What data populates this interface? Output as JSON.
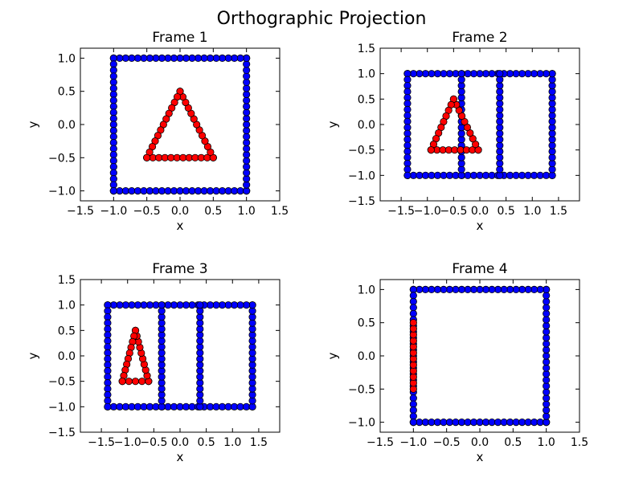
{
  "figure_title": "Orthographic Projection",
  "colors": {
    "square": "#0000ff",
    "triangle": "#ff0000"
  },
  "chart_data": [
    {
      "type": "scatter",
      "title": "Frame 1",
      "xlabel": "x",
      "ylabel": "y",
      "xlim": [
        -1.5,
        1.5
      ],
      "ylim": [
        -1.15,
        1.15
      ],
      "xticks": [
        -1.5,
        -1.0,
        -0.5,
        0.0,
        0.5,
        1.0,
        1.5
      ],
      "yticks": [
        -1.0,
        -0.5,
        0.0,
        0.5,
        1.0
      ],
      "tick_labels_x": [
        "−1.5",
        "−1.0",
        "−0.5",
        "0.0",
        "0.5",
        "1.0",
        "1.5"
      ],
      "tick_labels_y": [
        "−1.0",
        "−0.5",
        "0.0",
        "0.5",
        "1.0"
      ],
      "series": [
        {
          "color": "#0000ff",
          "marker": "circle",
          "segments": [
            [
              [
                -1.0,
                -1.0
              ],
              [
                1.0,
                -1.0
              ]
            ],
            [
              [
                1.0,
                -1.0
              ],
              [
                1.0,
                1.0
              ]
            ],
            [
              [
                1.0,
                1.0
              ],
              [
                -1.0,
                1.0
              ]
            ],
            [
              [
                -1.0,
                1.0
              ],
              [
                -1.0,
                -1.0
              ]
            ]
          ]
        },
        {
          "color": "#ff0000",
          "marker": "circle",
          "segments": [
            [
              [
                -0.5,
                -0.5
              ],
              [
                0.5,
                -0.5
              ]
            ],
            [
              [
                0.5,
                -0.5
              ],
              [
                0.0,
                0.5
              ]
            ],
            [
              [
                0.0,
                0.5
              ],
              [
                -0.5,
                -0.5
              ]
            ]
          ]
        }
      ]
    },
    {
      "type": "scatter",
      "title": "Frame 2",
      "xlabel": "x",
      "ylabel": "y",
      "xlim": [
        -1.9,
        1.9
      ],
      "ylim": [
        -1.5,
        1.5
      ],
      "xticks": [
        -1.5,
        -1.0,
        -0.5,
        0.0,
        0.5,
        1.0,
        1.5
      ],
      "yticks": [
        -1.5,
        -1.0,
        -0.5,
        0.0,
        0.5,
        1.0,
        1.5
      ],
      "tick_labels_x": [
        "−1.5",
        "−1.0",
        "−0.5",
        "0.0",
        "0.5",
        "1.0",
        "1.5"
      ],
      "tick_labels_y": [
        "−1.5",
        "−1.0",
        "−0.5",
        "0.0",
        "0.5",
        "1.0",
        "1.5"
      ],
      "series": [
        {
          "color": "#0000ff",
          "marker": "circle",
          "segments": [
            [
              [
                -1.38,
                -1.0
              ],
              [
                1.38,
                -1.0
              ]
            ],
            [
              [
                1.38,
                -1.0
              ],
              [
                1.38,
                1.0
              ]
            ],
            [
              [
                1.38,
                1.0
              ],
              [
                -1.38,
                1.0
              ]
            ],
            [
              [
                -1.38,
                1.0
              ],
              [
                -1.38,
                -1.0
              ]
            ],
            [
              [
                -0.35,
                -1.0
              ],
              [
                -0.35,
                1.0
              ]
            ],
            [
              [
                0.38,
                -1.0
              ],
              [
                0.38,
                1.0
              ]
            ]
          ]
        },
        {
          "color": "#ff0000",
          "marker": "circle",
          "segments": [
            [
              [
                -0.93,
                -0.5
              ],
              [
                -0.03,
                -0.5
              ]
            ],
            [
              [
                -0.03,
                -0.5
              ],
              [
                -0.5,
                0.5
              ]
            ],
            [
              [
                -0.5,
                0.5
              ],
              [
                -0.93,
                -0.5
              ]
            ]
          ]
        }
      ]
    },
    {
      "type": "scatter",
      "title": "Frame 3",
      "xlabel": "x",
      "ylabel": "y",
      "xlim": [
        -1.9,
        1.9
      ],
      "ylim": [
        -1.5,
        1.5
      ],
      "xticks": [
        -1.5,
        -1.0,
        -0.5,
        0.0,
        0.5,
        1.0,
        1.5
      ],
      "yticks": [
        -1.5,
        -1.0,
        -0.5,
        0.0,
        0.5,
        1.0,
        1.5
      ],
      "tick_labels_x": [
        "−1.5",
        "−1.0",
        "−0.5",
        "0.0",
        "0.5",
        "1.0",
        "1.5"
      ],
      "tick_labels_y": [
        "−1.5",
        "−1.0",
        "−0.5",
        "0.0",
        "0.5",
        "1.0",
        "1.5"
      ],
      "series": [
        {
          "color": "#0000ff",
          "marker": "circle",
          "segments": [
            [
              [
                -1.38,
                -1.0
              ],
              [
                1.38,
                -1.0
              ]
            ],
            [
              [
                1.38,
                -1.0
              ],
              [
                1.38,
                1.0
              ]
            ],
            [
              [
                1.38,
                1.0
              ],
              [
                -1.38,
                1.0
              ]
            ],
            [
              [
                -1.38,
                1.0
              ],
              [
                -1.38,
                -1.0
              ]
            ],
            [
              [
                -0.35,
                -1.0
              ],
              [
                -0.35,
                1.0
              ]
            ],
            [
              [
                0.38,
                -1.0
              ],
              [
                0.38,
                1.0
              ]
            ]
          ]
        },
        {
          "color": "#ff0000",
          "marker": "circle",
          "segments": [
            [
              [
                -1.1,
                -0.5
              ],
              [
                -0.6,
                -0.5
              ]
            ],
            [
              [
                -0.6,
                -0.5
              ],
              [
                -0.85,
                0.5
              ]
            ],
            [
              [
                -0.85,
                0.5
              ],
              [
                -1.1,
                -0.5
              ]
            ]
          ]
        }
      ]
    },
    {
      "type": "scatter",
      "title": "Frame 4",
      "xlabel": "x",
      "ylabel": "y",
      "xlim": [
        -1.5,
        1.5
      ],
      "ylim": [
        -1.15,
        1.15
      ],
      "xticks": [
        -1.5,
        -1.0,
        -0.5,
        0.0,
        0.5,
        1.0,
        1.5
      ],
      "yticks": [
        -1.0,
        -0.5,
        0.0,
        0.5,
        1.0
      ],
      "tick_labels_x": [
        "−1.5",
        "−1.0",
        "−0.5",
        "0.0",
        "0.5",
        "1.0",
        "1.5"
      ],
      "tick_labels_y": [
        "−1.0",
        "−0.5",
        "0.0",
        "0.5",
        "1.0"
      ],
      "series": [
        {
          "color": "#0000ff",
          "marker": "circle",
          "segments": [
            [
              [
                -1.0,
                -1.0
              ],
              [
                1.0,
                -1.0
              ]
            ],
            [
              [
                1.0,
                -1.0
              ],
              [
                1.0,
                1.0
              ]
            ],
            [
              [
                1.0,
                1.0
              ],
              [
                -1.0,
                1.0
              ]
            ],
            [
              [
                -1.0,
                1.0
              ],
              [
                -1.0,
                -1.0
              ]
            ]
          ]
        },
        {
          "color": "#ff0000",
          "marker": "circle",
          "segments": [
            [
              [
                -1.0,
                -0.5
              ],
              [
                -1.0,
                0.5
              ]
            ]
          ]
        }
      ]
    }
  ]
}
